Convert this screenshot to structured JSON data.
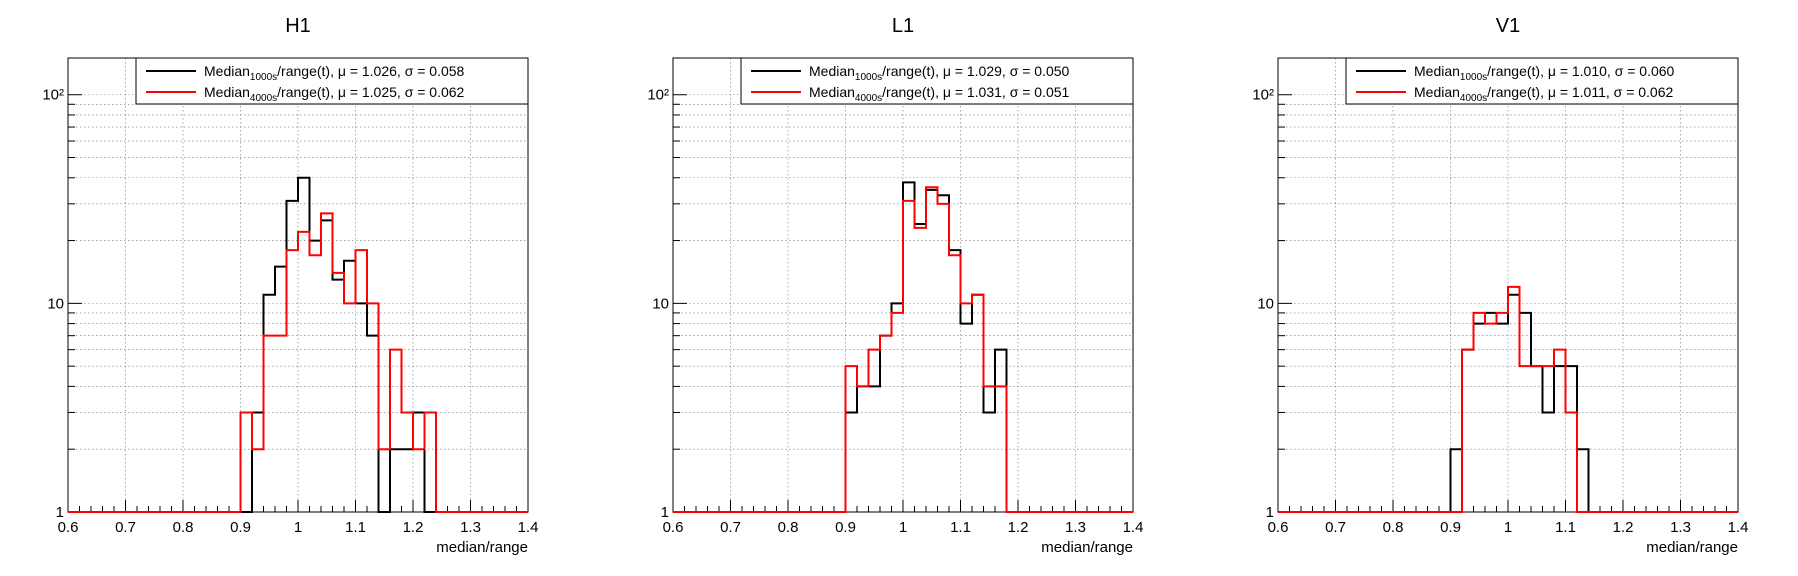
{
  "chart_data": [
    {
      "type": "histogram",
      "title": "H1",
      "xlabel": "median/range",
      "ylabel": "",
      "xlim": [
        0.6,
        1.4
      ],
      "ylim": [
        1,
        150
      ],
      "yscale": "log",
      "grid": true,
      "legend_position": "top-right",
      "x_ticks": [
        "0.6",
        "0.7",
        "0.8",
        "0.9",
        "1",
        "1.1",
        "1.2",
        "1.3",
        "1.4"
      ],
      "y_ticks": [
        "1",
        "10",
        "10²"
      ],
      "bin_width": 0.02,
      "bin_start": 0.6,
      "series": [
        {
          "name": "Median_1000s/range(t), μ = 1.026, σ = 0.058",
          "color": "#000000",
          "values": [
            1,
            1,
            1,
            1,
            1,
            1,
            1,
            1,
            1,
            1,
            1,
            1,
            1,
            1,
            1,
            1,
            3,
            11,
            15,
            31,
            40,
            20,
            25,
            13,
            16,
            10,
            7,
            1,
            2,
            2,
            3,
            1,
            1,
            1,
            1,
            1,
            1,
            1,
            1,
            1
          ]
        },
        {
          "name": "Median_4000s/range(t), μ = 1.025, σ = 0.062",
          "color": "#ff0000",
          "values": [
            1,
            1,
            1,
            1,
            1,
            1,
            1,
            1,
            1,
            1,
            1,
            1,
            1,
            1,
            1,
            3,
            2,
            7,
            7,
            18,
            22,
            17,
            27,
            14,
            10,
            18,
            10,
            2,
            6,
            3,
            2,
            3,
            1,
            1,
            1,
            1,
            1,
            1,
            1,
            1
          ]
        }
      ]
    },
    {
      "type": "histogram",
      "title": "L1",
      "xlabel": "median/range",
      "ylabel": "",
      "xlim": [
        0.6,
        1.4
      ],
      "ylim": [
        1,
        150
      ],
      "yscale": "log",
      "grid": true,
      "legend_position": "top-right",
      "x_ticks": [
        "0.6",
        "0.7",
        "0.8",
        "0.9",
        "1",
        "1.1",
        "1.2",
        "1.3",
        "1.4"
      ],
      "y_ticks": [
        "1",
        "10",
        "10²"
      ],
      "bin_width": 0.02,
      "bin_start": 0.6,
      "series": [
        {
          "name": "Median_1000s/range(t), μ = 1.029, σ = 0.050",
          "color": "#000000",
          "values": [
            1,
            1,
            1,
            1,
            1,
            1,
            1,
            1,
            1,
            1,
            1,
            1,
            1,
            1,
            1,
            3,
            4,
            4,
            7,
            10,
            38,
            24,
            35,
            33,
            18,
            8,
            11,
            3,
            6,
            1,
            1,
            1,
            1,
            1,
            1,
            1,
            1,
            1,
            1,
            1
          ]
        },
        {
          "name": "Median_4000s/range(t), μ = 1.031, σ = 0.051",
          "color": "#ff0000",
          "values": [
            1,
            1,
            1,
            1,
            1,
            1,
            1,
            1,
            1,
            1,
            1,
            1,
            1,
            1,
            1,
            5,
            4,
            6,
            7,
            9,
            31,
            23,
            36,
            30,
            17,
            10,
            11,
            4,
            4,
            1,
            1,
            1,
            1,
            1,
            1,
            1,
            1,
            1,
            1,
            1
          ]
        }
      ]
    },
    {
      "type": "histogram",
      "title": "V1",
      "xlabel": "median/range",
      "ylabel": "",
      "xlim": [
        0.6,
        1.4
      ],
      "ylim": [
        1,
        150
      ],
      "yscale": "log",
      "grid": true,
      "legend_position": "top-right",
      "x_ticks": [
        "0.6",
        "0.7",
        "0.8",
        "0.9",
        "1",
        "1.1",
        "1.2",
        "1.3",
        "1.4"
      ],
      "y_ticks": [
        "1",
        "10",
        "10²"
      ],
      "bin_width": 0.02,
      "bin_start": 0.6,
      "series": [
        {
          "name": "Median_1000s/range(t), μ = 1.010, σ = 0.060",
          "color": "#000000",
          "values": [
            1,
            1,
            1,
            1,
            1,
            1,
            1,
            1,
            1,
            1,
            1,
            1,
            1,
            1,
            1,
            2,
            6,
            8,
            9,
            8,
            11,
            9,
            5,
            3,
            5,
            5,
            2,
            1,
            1,
            1,
            1,
            1,
            1,
            1,
            1,
            1,
            1,
            1,
            1,
            1
          ]
        },
        {
          "name": "Median_4000s/range(t), μ = 1.011, σ = 0.062",
          "color": "#ff0000",
          "values": [
            1,
            1,
            1,
            1,
            1,
            1,
            1,
            1,
            1,
            1,
            1,
            1,
            1,
            1,
            1,
            1,
            6,
            9,
            8,
            9,
            12,
            5,
            5,
            5,
            6,
            3,
            1,
            1,
            1,
            1,
            1,
            1,
            1,
            1,
            1,
            1,
            1,
            1,
            1,
            1
          ]
        }
      ]
    }
  ]
}
